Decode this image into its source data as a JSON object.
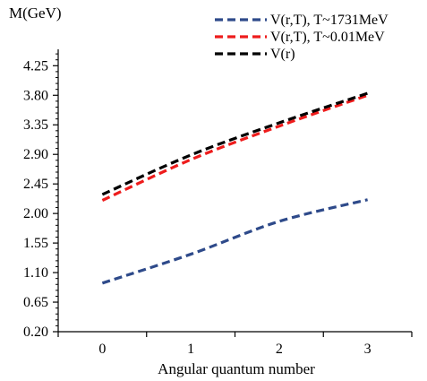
{
  "chart_data": {
    "type": "line",
    "title": "",
    "ylabel": "M(GeV)",
    "xlabel": "Angular quantum number",
    "x": [
      0,
      1,
      2,
      3
    ],
    "x_ticks": [
      "0",
      "1",
      "2",
      "3"
    ],
    "xlim": [
      -0.5,
      3.5
    ],
    "ylim": [
      0.2,
      4.5
    ],
    "y_ticks": [
      "0.20",
      "0.65",
      "1.10",
      "1.55",
      "2.00",
      "2.45",
      "2.90",
      "3.35",
      "3.80",
      "4.25"
    ],
    "y_tick_values": [
      0.2,
      0.65,
      1.1,
      1.55,
      2.0,
      2.45,
      2.9,
      3.35,
      3.8,
      4.25
    ],
    "grid": false,
    "legend_position": "top-right",
    "series": [
      {
        "name": "V(r,T), T~1731MeV",
        "color": "#2e4a8a",
        "values": [
          0.94,
          1.38,
          1.88,
          2.21
        ]
      },
      {
        "name": "V(r,T), T~0.01MeV",
        "color": "#ee1c1c",
        "values": [
          2.2,
          2.82,
          3.33,
          3.8
        ]
      },
      {
        "name": "V(r)",
        "color": "#000000",
        "values": [
          2.29,
          2.89,
          3.38,
          3.83
        ]
      }
    ]
  }
}
